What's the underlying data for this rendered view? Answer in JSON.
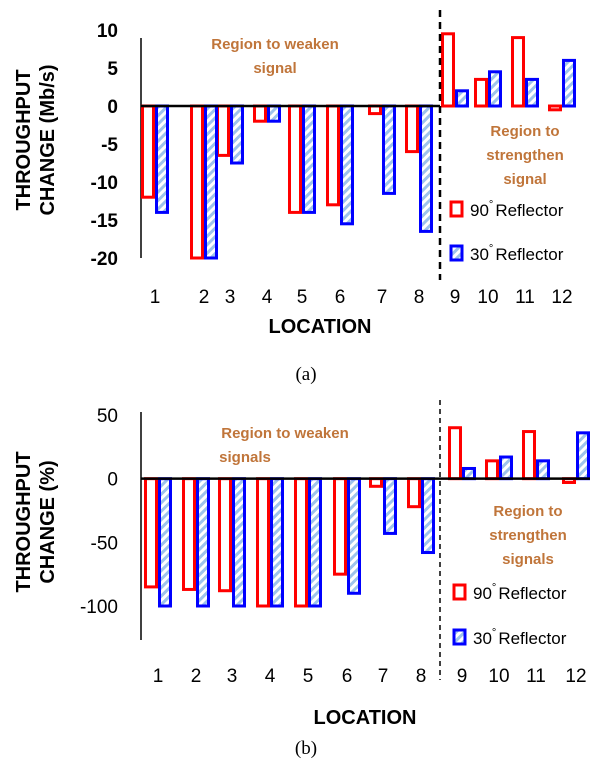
{
  "figure": {
    "caption_a": "(a)",
    "caption_b": "(b)",
    "colors": {
      "series_90": "#ff0000",
      "series_30": "#0000ff",
      "hatch": "#9ec3ec",
      "region_text": "#c0753a"
    }
  },
  "chart_data": [
    {
      "type": "bar",
      "panel": "a",
      "ylabel_line1": "THROUGHPUT",
      "ylabel_line2": "CHANGE (Mb/s)",
      "xlabel": "LOCATION",
      "categories": [
        "1",
        "2",
        "3",
        "4",
        "5",
        "6",
        "7",
        "8",
        "9",
        "10",
        "11",
        "12"
      ],
      "ylim": [
        -20,
        10
      ],
      "yticks": [
        10,
        5,
        0,
        -5,
        -10,
        -15,
        -20
      ],
      "series": [
        {
          "name": "90° Reflector",
          "legend_degree": "90",
          "legend_word": "Reflector",
          "values": [
            -12,
            -20,
            -6.5,
            -2,
            -14,
            -13,
            -1,
            -6,
            9.5,
            3.5,
            9,
            -0.5
          ]
        },
        {
          "name": "30° Reflector",
          "legend_degree": "30",
          "legend_word": "Reflector",
          "values": [
            -14,
            -20,
            -7.5,
            -2,
            -14,
            -15.5,
            -11.5,
            -16.5,
            2,
            4.5,
            3.5,
            6
          ]
        }
      ],
      "region_left_line1": "Region to weaken",
      "region_left_line2": "signal",
      "region_right_line1": "Region to",
      "region_right_line2": "strengthen",
      "region_right_line3": "signal"
    },
    {
      "type": "bar",
      "panel": "b",
      "ylabel_line1": "THROUGHPUT",
      "ylabel_line2": "CHANGE (%)",
      "xlabel": "LOCATION",
      "categories": [
        "1",
        "2",
        "3",
        "4",
        "5",
        "6",
        "7",
        "8",
        "9",
        "10",
        "11",
        "12"
      ],
      "ylim": [
        -100,
        50
      ],
      "yticks": [
        50,
        0,
        -50,
        -100
      ],
      "series": [
        {
          "name": "90° Reflector",
          "legend_degree": "90",
          "legend_word": "Reflector",
          "values": [
            -85,
            -87,
            -88,
            -100,
            -100,
            -75,
            -6,
            -22,
            40,
            14,
            37,
            -3
          ]
        },
        {
          "name": "30° Reflector",
          "legend_degree": "30",
          "legend_word": "Reflector",
          "values": [
            -100,
            -100,
            -100,
            -100,
            -100,
            -90,
            -43,
            -58,
            8,
            17,
            14,
            36
          ]
        }
      ],
      "region_left_line1": "Region to weaken",
      "region_left_line2": "signals",
      "region_right_line1": "Region to",
      "region_right_line2": "strengthen",
      "region_right_line3": "signals"
    }
  ]
}
